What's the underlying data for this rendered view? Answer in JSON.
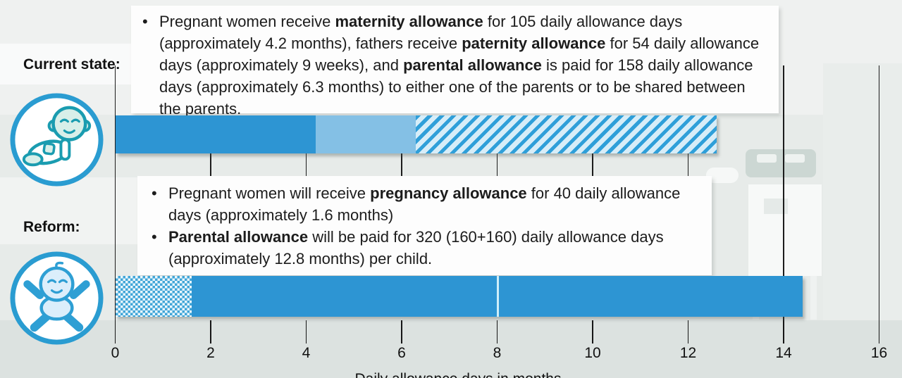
{
  "ui": {
    "bullet_char": "•"
  },
  "colors": {
    "bar_dark": "#2d95d3",
    "bar_light": "#84c0e5",
    "hatch_stripe": "#2f9fd9",
    "hatch_bg": "#d7edf8",
    "check_blue": "#41a5d7",
    "check_bg": "#e9f6fc",
    "divider": "#cfeef9",
    "circle_blue": "#2a9cd1",
    "icon_teal": "#1a9cb0",
    "icon_teal_fill": "#d8efe9",
    "icon_blue": "#2e9fd4",
    "icon_blue_fill": "#dbeefb"
  },
  "current_state": {
    "label": "Current state:",
    "icon": "crawling-baby-icon",
    "bullet": [
      {
        "t": "Pregnant women receive "
      },
      {
        "t": "maternity allowance",
        "b": true
      },
      {
        "t": " for 105 daily allowance days (approximately 4.2 months), fathers receive "
      },
      {
        "t": "paternity allowance",
        "b": true
      },
      {
        "t": " for 54 daily allowance days (approximately 9 weeks), and "
      },
      {
        "t": "parental allowance",
        "b": true
      },
      {
        "t": " is paid for 158 daily allowance days (approximately 6.3 months) to either one of the parents or to be shared between the parents."
      }
    ]
  },
  "reform": {
    "label": "Reform:",
    "icon": "lying-baby-icon",
    "bullets": [
      [
        {
          "t": "Pregnant women will receive "
        },
        {
          "t": "pregnancy allowance",
          "b": true
        },
        {
          "t": " for 40 daily allowance days (approximately 1.6 months)"
        }
      ],
      [
        {
          "t": "Parental allowance",
          "b": true
        },
        {
          "t": " will be paid for 320 (160+160) daily allowance days (approximately 12.8 months) per child."
        }
      ]
    ]
  },
  "chart_data": {
    "type": "bar",
    "orientation": "horizontal",
    "unit": "months",
    "categories": [
      "Current state",
      "Reform"
    ],
    "series": [
      {
        "row": "current",
        "name": "Maternity allowance",
        "days": 105,
        "months": 4.2,
        "style": "solid-dark-blue"
      },
      {
        "row": "current",
        "name": "Paternity allowance",
        "days": 54,
        "months": 2.1,
        "style": "solid-light-blue"
      },
      {
        "row": "current",
        "name": "Parental allowance",
        "days": 158,
        "months": 6.3,
        "style": "diagonal-hatch"
      },
      {
        "row": "reform",
        "name": "Pregnancy allowance",
        "days": 40,
        "months": 1.6,
        "style": "checker"
      },
      {
        "row": "reform",
        "name": "Parental allowance parent 1",
        "days": 160,
        "months": 6.4,
        "style": "solid-blue"
      },
      {
        "row": "reform",
        "name": "Parental allowance parent 2",
        "days": 160,
        "months": 6.4,
        "style": "solid-blue",
        "divider_before": true
      }
    ],
    "xlim": [
      0,
      16
    ],
    "xticks": [
      0,
      2,
      4,
      6,
      8,
      10,
      12,
      14,
      16
    ],
    "xlabel": "Daily allowance days in months",
    "grid": true,
    "legend": false
  }
}
